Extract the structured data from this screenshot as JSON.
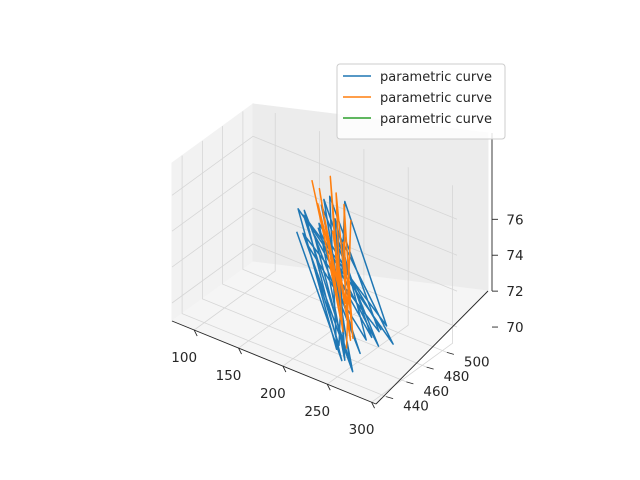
{
  "chart_data": {
    "type": "line",
    "projection": "3d",
    "title": "",
    "xlabel": "",
    "ylabel": "",
    "zlabel": "",
    "grid": true,
    "legend_position": "top-right",
    "xlim": [
      75,
      305
    ],
    "ylim": [
      430,
      510
    ],
    "zlim": [
      69,
      77.8
    ],
    "x_ticks": [
      "100",
      "150",
      "200",
      "250",
      "300"
    ],
    "y_ticks": [
      "440",
      "460",
      "480",
      "500"
    ],
    "z_ticks": [
      "70",
      "72",
      "74",
      "76"
    ],
    "series": [
      {
        "name": "parametric curve",
        "color": "#1f77b4",
        "x": [
          130,
          255,
          150,
          270,
          160,
          285,
          175,
          265,
          145,
          280,
          190,
          240,
          135,
          290,
          205,
          250,
          160,
          275,
          180,
          260,
          140,
          285,
          215,
          245,
          155,
          270,
          195,
          255,
          170,
          280
        ],
        "y": [
          505,
          440,
          495,
          445,
          500,
          450,
          490,
          442,
          498,
          455,
          485,
          448,
          502,
          460,
          480,
          447,
          496,
          452,
          488,
          444,
          503,
          458,
          478,
          446,
          494,
          451,
          486,
          443,
          492,
          457
        ],
        "z": [
          72,
          70,
          74,
          70.5,
          73,
          71,
          75,
          69.5,
          72.5,
          71.5,
          76,
          70,
          73.5,
          70.8,
          74.5,
          70.2,
          72.8,
          71.2,
          75.5,
          69.8,
          73.2,
          71.8,
          76.5,
          70.4,
          72.2,
          71,
          74.8,
          69.9,
          73.8,
          71.5
        ]
      },
      {
        "name": "parametric curve",
        "color": "#ff7f0e",
        "x": [
          170,
          235,
          175,
          240,
          180,
          230,
          185,
          245,
          190,
          235,
          195,
          250,
          200,
          240,
          205,
          255,
          210,
          245,
          215,
          250
        ],
        "y": [
          485,
          455,
          488,
          452,
          482,
          458,
          490,
          450,
          480,
          456,
          487,
          453,
          479,
          457,
          486,
          451,
          481,
          454,
          484,
          449
        ],
        "z": [
          76.5,
          72,
          76,
          71.5,
          75.5,
          73,
          76.8,
          71,
          75,
          72.5,
          76.2,
          70.5,
          74.5,
          72.2,
          75.8,
          70.8,
          74,
          71.8,
          75.2,
          70.2
        ]
      },
      {
        "name": "parametric curve",
        "color": "#2ca02c",
        "x": [],
        "y": [],
        "z": []
      }
    ]
  }
}
